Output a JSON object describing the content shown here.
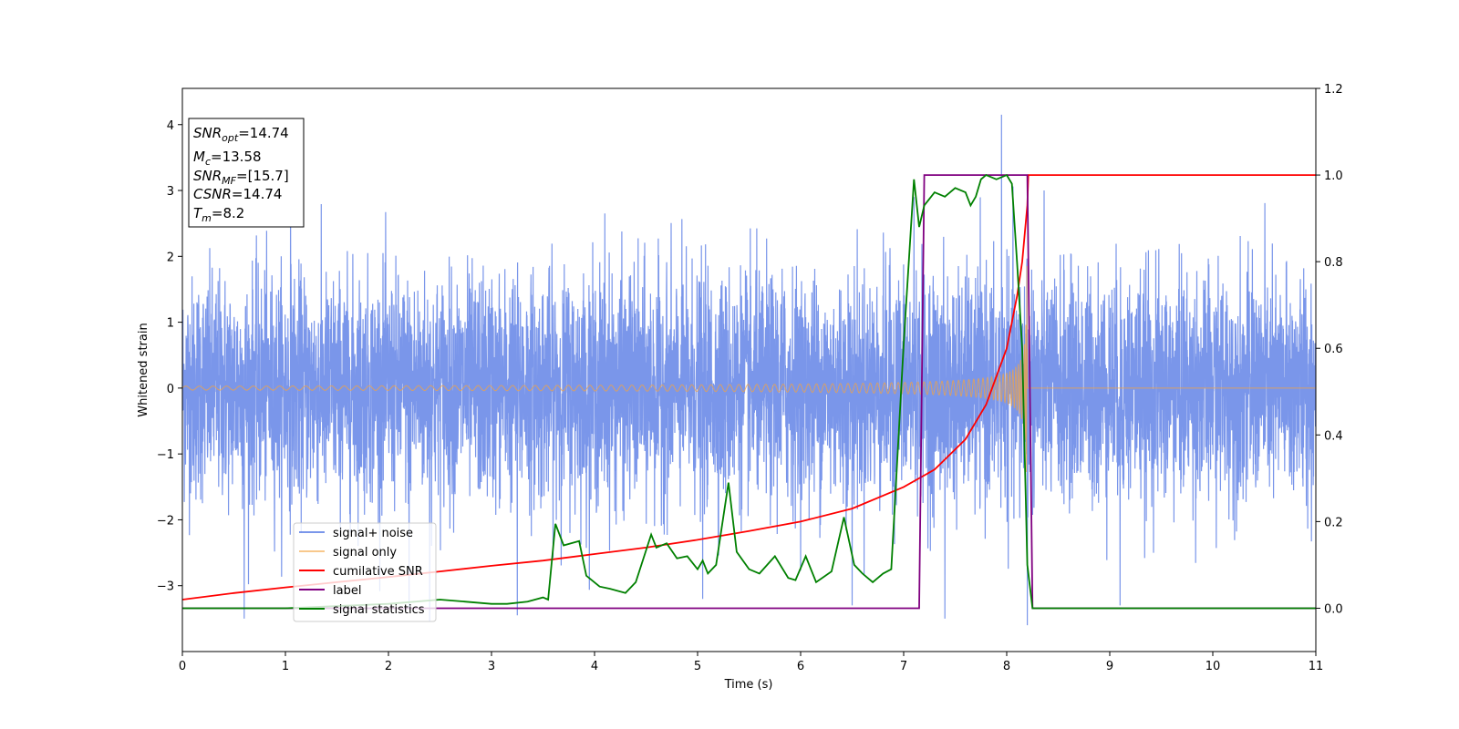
{
  "chart_data": {
    "type": "line",
    "xlabel": "Time (s)",
    "ylabel": "Whitened strain",
    "xlim": [
      0,
      11
    ],
    "ylim": [
      -4,
      4.55
    ],
    "y2lim": [
      -0.1,
      1.2
    ],
    "x_ticks": [
      "0",
      "1",
      "2",
      "3",
      "4",
      "5",
      "6",
      "7",
      "8",
      "9",
      "10",
      "11"
    ],
    "y_ticks": [
      "−3",
      "−2",
      "−1",
      "0",
      "1",
      "2",
      "3",
      "4"
    ],
    "y2_ticks": [
      "0.0",
      "0.2",
      "0.4",
      "0.6",
      "0.8",
      "1.0",
      "1.2"
    ],
    "grid": false,
    "legend_position": "lower-left",
    "info_box": {
      "snr_opt_main": "SNR",
      "snr_opt_sub": "opt",
      "snr_opt_value": "=14.74",
      "mc_main": "M",
      "mc_sub": "c",
      "mc_value": "=13.58",
      "snr_mf_main": "SNR",
      "snr_mf_sub": "MF",
      "snr_mf_value": "=[15.7]",
      "csnr_main": "CSNR",
      "csnr_value": "=14.74",
      "tm_main": "T",
      "tm_sub": "m",
      "tm_value": "=8.2"
    },
    "series": [
      {
        "name": "signal+ noise",
        "axis": "left",
        "color": "#4169e1",
        "description_values": {
          "noise_std": 0.85,
          "max_spike": 4.15,
          "min_spike": -3.6
        },
        "spikes": [
          [
            0.6,
            -3.5
          ],
          [
            1.05,
            2.85
          ],
          [
            2.2,
            -3.35
          ],
          [
            2.4,
            -3.55
          ],
          [
            3.25,
            -3.45
          ],
          [
            4.1,
            2.65
          ],
          [
            5.05,
            -3.2
          ],
          [
            6.5,
            -3.3
          ],
          [
            7.1,
            2.9
          ],
          [
            7.4,
            -3.5
          ],
          [
            7.95,
            4.15
          ],
          [
            8.2,
            3.6
          ],
          [
            8.2,
            -3.6
          ],
          [
            9.1,
            -3.3
          ]
        ]
      },
      {
        "name": "signal only",
        "axis": "left",
        "color": "#f4a340",
        "chirp": {
          "t_merge": 8.2,
          "amp_start": 0.03,
          "amp_peak": 2.7,
          "freq_start": 7.5
        }
      },
      {
        "name": "cumilative SNR",
        "axis": "right",
        "color": "#ff0000",
        "x": [
          0,
          0.5,
          1,
          1.5,
          2,
          2.5,
          3,
          3.5,
          4,
          4.5,
          5,
          5.5,
          6,
          6.5,
          7,
          7.3,
          7.6,
          7.8,
          8.0,
          8.1,
          8.15,
          8.2,
          8.21,
          11
        ],
        "values": [
          0.02,
          0.035,
          0.048,
          0.06,
          0.072,
          0.085,
          0.098,
          0.11,
          0.125,
          0.14,
          0.158,
          0.178,
          0.2,
          0.23,
          0.28,
          0.32,
          0.39,
          0.47,
          0.6,
          0.72,
          0.8,
          0.93,
          1.0,
          1.0
        ]
      },
      {
        "name": "label",
        "axis": "right",
        "color": "#800080",
        "x": [
          0,
          7.15,
          7.2,
          8.2,
          8.25,
          11
        ],
        "values": [
          0,
          0,
          1,
          1,
          0,
          0
        ]
      },
      {
        "name": "signal statistics",
        "axis": "right",
        "color": "#008000",
        "x": [
          0,
          1,
          2,
          2.5,
          2.75,
          3.0,
          3.15,
          3.35,
          3.5,
          3.55,
          3.62,
          3.7,
          3.85,
          3.92,
          4.05,
          4.15,
          4.3,
          4.4,
          4.55,
          4.6,
          4.7,
          4.8,
          4.9,
          5.0,
          5.05,
          5.1,
          5.18,
          5.3,
          5.38,
          5.5,
          5.6,
          5.75,
          5.88,
          5.95,
          6.05,
          6.15,
          6.3,
          6.42,
          6.52,
          6.6,
          6.7,
          6.8,
          6.88,
          7.0,
          7.1,
          7.15,
          7.2,
          7.3,
          7.4,
          7.5,
          7.6,
          7.65,
          7.7,
          7.75,
          7.8,
          7.9,
          8.0,
          8.05,
          8.1,
          8.15,
          8.2,
          8.25,
          11
        ],
        "values": [
          0,
          0,
          0.01,
          0.02,
          0.015,
          0.01,
          0.01,
          0.015,
          0.025,
          0.02,
          0.195,
          0.145,
          0.155,
          0.075,
          0.05,
          0.045,
          0.035,
          0.06,
          0.17,
          0.14,
          0.15,
          0.115,
          0.12,
          0.09,
          0.11,
          0.08,
          0.1,
          0.29,
          0.13,
          0.09,
          0.08,
          0.12,
          0.07,
          0.065,
          0.12,
          0.06,
          0.085,
          0.21,
          0.1,
          0.08,
          0.06,
          0.08,
          0.09,
          0.61,
          0.99,
          0.88,
          0.93,
          0.96,
          0.95,
          0.97,
          0.96,
          0.93,
          0.95,
          0.99,
          1.0,
          0.99,
          1.0,
          0.98,
          0.8,
          0.6,
          0.1,
          0.0,
          0.0
        ]
      }
    ]
  }
}
